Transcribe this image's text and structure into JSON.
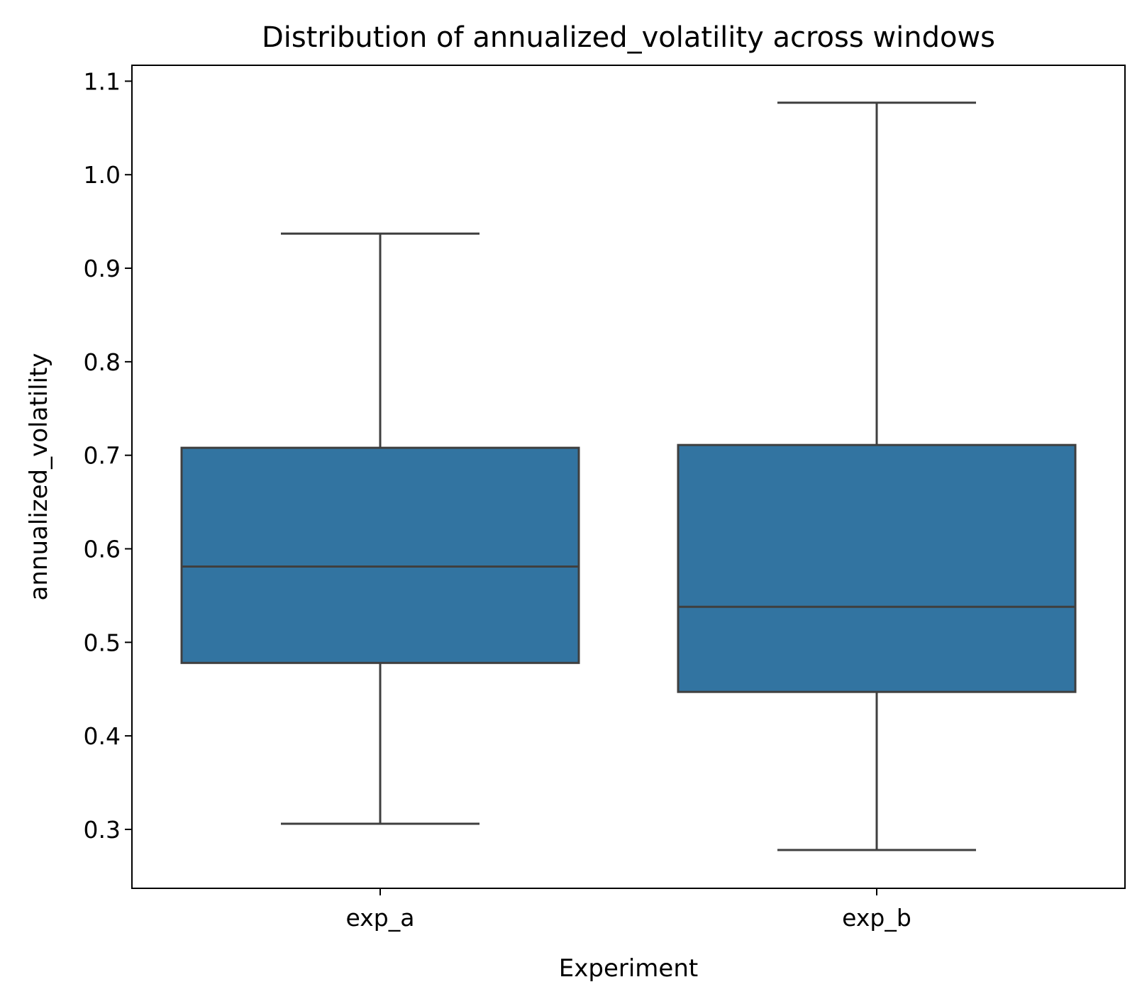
{
  "chart_data": {
    "type": "box",
    "title": "Distribution of annualized_volatility across windows",
    "xlabel": "Experiment",
    "ylabel": "annualized_volatility",
    "categories": [
      "exp_a",
      "exp_b"
    ],
    "ylim": [
      0.237,
      1.117
    ],
    "yticks": [
      0.3,
      0.4,
      0.5,
      0.6,
      0.7,
      0.8,
      0.9,
      1.0,
      1.1
    ],
    "ytick_labels": [
      "0.3",
      "0.4",
      "0.5",
      "0.6",
      "0.7",
      "0.8",
      "0.9",
      "1.0",
      "1.1"
    ],
    "boxes": [
      {
        "category": "exp_a",
        "whisker_low": 0.306,
        "q1": 0.478,
        "median": 0.581,
        "q3": 0.708,
        "whisker_high": 0.937
      },
      {
        "category": "exp_b",
        "whisker_low": 0.278,
        "q1": 0.447,
        "median": 0.538,
        "q3": 0.711,
        "whisker_high": 1.077
      }
    ],
    "grid": false,
    "box_color": "#3274a1",
    "line_color": "#3f3f3f"
  }
}
